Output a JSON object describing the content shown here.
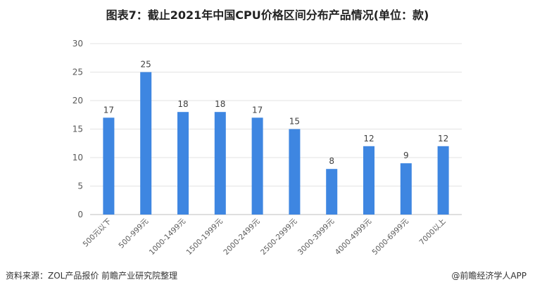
{
  "chart_data": {
    "type": "bar",
    "title": "图表7：截止2021年中国CPU价格区间分布产品情况(单位：款)",
    "categories": [
      "500元以下",
      "500-999元",
      "1000-1499元",
      "1500-1999元",
      "2000-2499元",
      "2500-2999元",
      "3000-3999元",
      "4000-4999元",
      "5000-6999元",
      "7000以上"
    ],
    "values": [
      17,
      25,
      18,
      18,
      17,
      15,
      8,
      12,
      9,
      12
    ],
    "xlabel": "",
    "ylabel": "",
    "ylim": [
      0,
      30
    ],
    "yticks": [
      0,
      5,
      10,
      15,
      20,
      25,
      30
    ],
    "grid": true,
    "bar_color": "#3e86e1"
  },
  "footer": {
    "source": "资料来源：ZOL产品报价 前瞻产业研究院整理",
    "credit": "@前瞻经济学人APP"
  }
}
